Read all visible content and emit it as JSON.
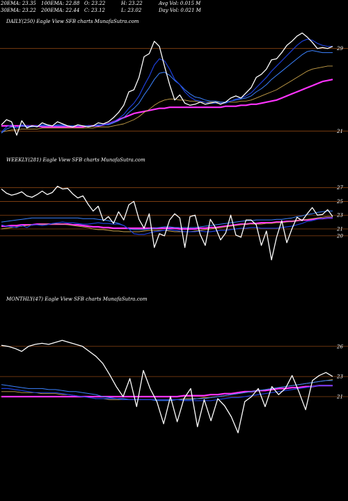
{
  "header": {
    "ema20": "20EMA: 23.35",
    "ema30": "30EMA: 23.22",
    "ema100": "100EMA: 22.88",
    "ema200": "200EMA: 22.44",
    "open": "O: 23.22",
    "close": "C: 23.12",
    "high": "H: 23.22",
    "low": "L: 23.02",
    "avg_vol": "Avg Vol: 0.015 M",
    "day_vol": "Day Vol: 0.021 M"
  },
  "colors": {
    "background": "#000000",
    "price": "#ffffff",
    "ema_fast": "#1e3fd8",
    "ema_mid": "#3b82ff",
    "ema_slow": "#c9a24a",
    "ema_long": "#ff33ff",
    "grid": "#8b4513"
  },
  "chart_data": [
    {
      "type": "line",
      "title": "DAILY(250) Eagle  View  SFB charts MunafaSutra.com",
      "ylim": [
        19,
        31
      ],
      "yticks": [
        29,
        21
      ],
      "series": [
        {
          "values": [
            21.6,
            22.1,
            21.9,
            20.6,
            22.0,
            21.3,
            21.5,
            21.4,
            21.8,
            21.6,
            21.5,
            21.9,
            21.7,
            21.5,
            21.4,
            21.6,
            21.5,
            21.4,
            21.5,
            21.8,
            21.7,
            21.9,
            22.3,
            22.8,
            23.5,
            24.8,
            25.0,
            26.2,
            28.2,
            28.5,
            29.7,
            29.2,
            27.3,
            25.5,
            24.0,
            24.5,
            23.7,
            23.5,
            23.6,
            23.8,
            23.6,
            23.7,
            23.8,
            23.6,
            23.8,
            24.2,
            24.4,
            24.2,
            24.7,
            25.2,
            26.2,
            26.5,
            27.0,
            27.9,
            28.0,
            28.6,
            29.3,
            29.7,
            30.2,
            30.5,
            30.1,
            29.6,
            29.0,
            29.1,
            29.0,
            29.2
          ]
        },
        {
          "values": [
            20.9,
            21.4,
            21.6,
            21.3,
            21.6,
            21.5,
            21.5,
            21.5,
            21.6,
            21.6,
            21.5,
            21.6,
            21.6,
            21.5,
            21.5,
            21.5,
            21.5,
            21.5,
            21.5,
            21.6,
            21.6,
            21.7,
            21.9,
            22.2,
            22.6,
            23.2,
            23.7,
            24.4,
            25.4,
            26.3,
            27.4,
            28.0,
            27.8,
            27.0,
            26.0,
            25.5,
            24.8,
            24.3,
            24.0,
            23.9,
            23.8,
            23.7,
            23.7,
            23.7,
            23.7,
            23.9,
            24.1,
            24.2,
            24.4,
            24.7,
            25.2,
            25.7,
            26.2,
            26.8,
            27.3,
            27.8,
            28.3,
            28.8,
            29.3,
            29.7,
            29.9,
            29.8,
            29.5,
            29.3,
            29.2,
            29.2
          ]
        },
        {
          "values": [
            20.8,
            21.2,
            21.4,
            21.3,
            21.5,
            21.4,
            21.4,
            21.5,
            21.5,
            21.5,
            21.5,
            21.5,
            21.5,
            21.5,
            21.5,
            21.5,
            21.5,
            21.5,
            21.5,
            21.5,
            21.6,
            21.6,
            21.8,
            22.0,
            22.3,
            22.8,
            23.2,
            23.7,
            24.5,
            25.2,
            26.0,
            26.6,
            26.7,
            26.4,
            25.9,
            25.5,
            25.0,
            24.6,
            24.3,
            24.2,
            24.0,
            23.9,
            23.9,
            23.8,
            23.8,
            23.9,
            24.0,
            24.1,
            24.2,
            24.4,
            24.8,
            25.1,
            25.5,
            26.0,
            26.4,
            26.8,
            27.2,
            27.6,
            28.0,
            28.4,
            28.7,
            28.8,
            28.7,
            28.6,
            28.6,
            28.6
          ]
        },
        {
          "values": [
            20.9,
            21.0,
            21.1,
            21.1,
            21.2,
            21.2,
            21.2,
            21.2,
            21.3,
            21.3,
            21.3,
            21.3,
            21.3,
            21.3,
            21.3,
            21.3,
            21.3,
            21.3,
            21.3,
            21.4,
            21.4,
            21.4,
            21.5,
            21.6,
            21.7,
            21.9,
            22.1,
            22.4,
            22.8,
            23.1,
            23.5,
            23.8,
            24.0,
            24.1,
            24.1,
            24.0,
            24.0,
            23.9,
            23.9,
            23.8,
            23.8,
            23.8,
            23.8,
            23.8,
            23.8,
            23.8,
            23.8,
            23.9,
            23.9,
            24.0,
            24.2,
            24.4,
            24.6,
            24.8,
            25.0,
            25.3,
            25.6,
            25.9,
            26.2,
            26.5,
            26.8,
            27.0,
            27.1,
            27.2,
            27.3,
            27.3
          ]
        },
        {
          "values": [
            21.5,
            21.5,
            21.5,
            21.5,
            21.5,
            21.5,
            21.5,
            21.5,
            21.4,
            21.4,
            21.4,
            21.4,
            21.4,
            21.4,
            21.4,
            21.4,
            21.4,
            21.5,
            21.5,
            21.5,
            21.6,
            21.7,
            21.9,
            22.1,
            22.3,
            22.5,
            22.7,
            22.8,
            22.9,
            23.0,
            23.1,
            23.2,
            23.2,
            23.3,
            23.3,
            23.3,
            23.3,
            23.3,
            23.3,
            23.3,
            23.3,
            23.3,
            23.3,
            23.3,
            23.4,
            23.4,
            23.4,
            23.5,
            23.5,
            23.6,
            23.6,
            23.7,
            23.8,
            23.9,
            24.0,
            24.2,
            24.4,
            24.6,
            24.8,
            25.0,
            25.2,
            25.4,
            25.6,
            25.8,
            25.9,
            26.0
          ]
        }
      ]
    },
    {
      "type": "line",
      "title": "WEEKLY(281) Eagle  View  SFB charts MunafaSutra.com",
      "ylim": [
        12,
        30
      ],
      "yticks": [
        27,
        25,
        23,
        21,
        20
      ],
      "series": [
        {
          "values": [
            26.8,
            26.2,
            25.9,
            26.1,
            26.4,
            25.8,
            25.6,
            26.0,
            26.5,
            26.0,
            26.3,
            27.2,
            26.8,
            26.9,
            26.1,
            25.5,
            25.8,
            24.6,
            23.6,
            24.3,
            22.2,
            22.8,
            21.8,
            23.5,
            22.3,
            24.5,
            25.0,
            22.4,
            21.1,
            23.2,
            18.3,
            20.3,
            20.0,
            22.3,
            23.2,
            22.6,
            18.3,
            22.8,
            23.0,
            20.2,
            18.6,
            22.4,
            21.2,
            19.4,
            20.4,
            23.0,
            20.1,
            19.8,
            22.3,
            22.3,
            21.6,
            18.6,
            20.7,
            16.5,
            19.8,
            22.2,
            19.0,
            21.0,
            22.7,
            22.2,
            23.2,
            24.1,
            23.0,
            23.1,
            23.8,
            22.8
          ]
        },
        {
          "values": [
            21.6,
            21.4,
            21.3,
            21.2,
            21.5,
            21.2,
            21.6,
            21.6,
            21.5,
            21.6,
            21.8,
            21.9,
            22.0,
            21.9,
            21.9,
            21.8,
            21.7,
            21.7,
            21.8,
            21.9,
            21.8,
            21.8,
            21.7,
            21.7,
            21.5,
            21.0,
            20.3,
            20.2,
            20.2,
            20.4,
            20.6,
            20.7,
            20.8,
            20.9,
            20.8,
            20.7,
            20.6,
            20.6,
            20.6,
            20.7,
            20.6,
            20.6,
            20.7,
            20.8,
            20.8,
            20.9,
            21.0,
            21.1,
            21.1,
            21.2,
            21.2,
            21.1,
            21.1,
            21.1,
            21.1,
            21.2,
            21.3,
            21.4,
            21.6,
            21.8,
            22.1,
            22.2,
            22.4,
            22.5,
            22.6,
            22.6
          ]
        },
        {
          "values": [
            22.0,
            22.1,
            22.2,
            22.3,
            22.4,
            22.5,
            22.6,
            22.6,
            22.6,
            22.6,
            22.6,
            22.6,
            22.6,
            22.6,
            22.6,
            22.6,
            22.5,
            22.5,
            22.5,
            22.4,
            22.3,
            22.2,
            22.0,
            21.8,
            21.5,
            21.0,
            20.9,
            20.9,
            20.9,
            21.0,
            21.1,
            21.2,
            21.3,
            21.3,
            21.2,
            21.2,
            21.2,
            21.2,
            21.2,
            21.3,
            21.4,
            21.5,
            21.6,
            21.7,
            21.8,
            21.9,
            22.0,
            22.1,
            22.2,
            22.2,
            22.3,
            22.3,
            22.3,
            22.3,
            22.4,
            22.4,
            22.5,
            22.6,
            22.8,
            22.9,
            23.1,
            23.2,
            23.4,
            23.5,
            23.6,
            23.6
          ]
        },
        {
          "values": [
            21.0,
            21.1,
            21.2,
            21.3,
            21.4,
            21.5,
            21.6,
            21.6,
            21.7,
            21.7,
            21.7,
            21.7,
            21.7,
            21.6,
            21.5,
            21.4,
            21.3,
            21.2,
            21.0,
            20.9,
            20.9,
            20.8,
            20.7,
            20.7,
            20.6,
            20.6,
            20.6,
            20.6,
            20.7,
            20.8,
            20.8,
            20.8,
            20.8,
            20.7,
            20.6,
            20.6,
            20.6,
            20.6,
            20.7,
            20.8,
            20.9,
            21.0,
            21.1,
            21.2,
            21.3,
            21.4,
            21.5,
            21.6,
            21.7,
            21.7,
            21.7,
            21.7,
            21.8,
            21.8,
            21.9,
            21.9,
            22.0,
            22.1,
            22.2,
            22.3,
            22.4,
            22.5,
            22.6,
            22.7,
            22.8,
            22.8
          ]
        },
        {
          "values": [
            21.4,
            21.4,
            21.5,
            21.5,
            21.6,
            21.6,
            21.6,
            21.7,
            21.7,
            21.7,
            21.7,
            21.7,
            21.7,
            21.7,
            21.6,
            21.6,
            21.5,
            21.4,
            21.3,
            21.3,
            21.2,
            21.2,
            21.1,
            21.1,
            21.1,
            21.1,
            21.1,
            21.1,
            21.1,
            21.1,
            21.1,
            21.1,
            21.1,
            21.1,
            21.1,
            21.0,
            21.0,
            21.0,
            21.0,
            21.1,
            21.1,
            21.2,
            21.2,
            21.3,
            21.4,
            21.5,
            21.6,
            21.7,
            21.7,
            21.8,
            21.8,
            21.9,
            21.9,
            21.9,
            22.0,
            22.0,
            22.1,
            22.1,
            22.2,
            22.3,
            22.3,
            22.4,
            22.5,
            22.5,
            22.6,
            22.6
          ]
        }
      ]
    },
    {
      "type": "line",
      "title": "MONTHLY(47) Eagle  View  SFB charts MunafaSutra.com",
      "ylim": [
        12,
        30
      ],
      "yticks": [
        26,
        23,
        21
      ],
      "series": [
        {
          "values": [
            26.1,
            26.0,
            25.8,
            25.5,
            26.0,
            26.2,
            26.3,
            26.2,
            26.4,
            26.6,
            26.4,
            26.2,
            26.0,
            25.5,
            25.0,
            24.3,
            23.2,
            22.0,
            21.0,
            22.8,
            20.0,
            23.6,
            21.8,
            20.5,
            18.3,
            21.0,
            18.5,
            20.8,
            21.8,
            18.0,
            20.7,
            18.6,
            20.8,
            20.1,
            19.0,
            17.4,
            20.5,
            21.0,
            21.8,
            20.0,
            22.0,
            21.2,
            21.8,
            23.1,
            21.5,
            19.7,
            22.6,
            23.1,
            23.4,
            23.0
          ]
        },
        {
          "values": [
            21.8,
            21.8,
            21.7,
            21.6,
            21.5,
            21.4,
            21.4,
            21.4,
            21.4,
            21.3,
            21.2,
            21.1,
            21.0,
            20.9,
            20.8,
            20.8,
            20.8,
            20.8,
            20.7,
            20.7,
            20.7,
            20.7,
            20.7,
            20.7,
            20.7,
            20.7,
            20.7,
            20.6,
            20.6,
            20.6,
            20.6,
            20.6,
            20.7,
            20.8,
            20.9,
            20.9,
            21.0,
            21.1,
            21.2,
            21.3,
            21.4,
            21.5,
            21.6,
            21.7,
            21.8,
            21.9,
            22.0,
            22.1,
            22.1,
            22.1
          ]
        },
        {
          "values": [
            22.2,
            22.1,
            22.0,
            21.9,
            21.8,
            21.8,
            21.8,
            21.7,
            21.7,
            21.6,
            21.5,
            21.5,
            21.4,
            21.3,
            21.2,
            21.0,
            20.9,
            20.8,
            20.8,
            20.7,
            20.7,
            20.7,
            20.7,
            20.6,
            20.6,
            20.6,
            20.7,
            20.7,
            20.7,
            20.8,
            20.8,
            20.9,
            21.0,
            21.1,
            21.2,
            21.3,
            21.4,
            21.5,
            21.6,
            21.7,
            21.8,
            21.9,
            22.0,
            22.1,
            22.2,
            22.3,
            22.4,
            22.5,
            22.6,
            22.6
          ]
        },
        {
          "values": [
            21.5,
            21.5,
            21.5,
            21.4,
            21.4,
            21.4,
            21.3,
            21.3,
            21.3,
            21.2,
            21.2,
            21.1,
            21.0,
            20.9,
            20.8,
            20.8,
            20.7,
            20.7,
            20.7,
            20.7,
            20.7,
            20.7,
            20.7,
            20.7,
            20.7,
            20.7,
            20.7,
            20.8,
            20.8,
            20.8,
            20.9,
            20.9,
            21.0,
            21.1,
            21.2,
            21.3,
            21.4,
            21.5,
            21.6,
            21.7,
            21.8,
            21.9,
            22.0,
            22.1,
            22.2,
            22.3,
            22.4,
            22.5,
            22.6,
            22.7
          ]
        },
        {
          "values": [
            21.0,
            21.0,
            21.0,
            21.0,
            21.0,
            21.0,
            21.0,
            21.0,
            21.0,
            21.0,
            21.0,
            21.0,
            21.0,
            21.0,
            21.0,
            21.0,
            21.0,
            21.0,
            21.0,
            21.0,
            21.0,
            21.0,
            21.0,
            21.0,
            21.0,
            21.0,
            21.0,
            21.1,
            21.1,
            21.1,
            21.1,
            21.2,
            21.2,
            21.3,
            21.3,
            21.4,
            21.5,
            21.5,
            21.6,
            21.6,
            21.7,
            21.8,
            21.8,
            21.9,
            21.9,
            22.0,
            22.0,
            22.1,
            22.1,
            22.1
          ]
        }
      ]
    }
  ]
}
